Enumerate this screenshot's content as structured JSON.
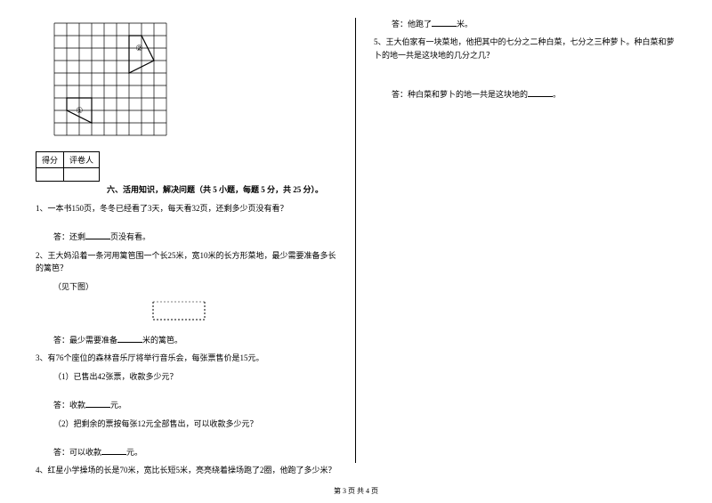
{
  "grid": {
    "rows": 9,
    "cols": 9,
    "cell_size": 14,
    "stroke": "#000000",
    "shape1": {
      "label": "①",
      "points": [
        [
          1,
          6
        ],
        [
          3,
          6
        ],
        [
          3,
          8
        ],
        [
          1,
          8
        ]
      ],
      "diag_from": [
        1,
        6
      ],
      "diag_to": [
        3,
        8
      ]
    },
    "shape2": {
      "label": "②",
      "points": [
        [
          5,
          1
        ],
        [
          7,
          1
        ],
        [
          7,
          4
        ],
        [
          5,
          4
        ]
      ],
      "inner": [
        [
          5,
          1
        ],
        [
          7,
          1
        ],
        [
          7,
          3
        ],
        [
          5,
          3
        ]
      ]
    }
  },
  "score_table": {
    "c1": "得分",
    "c2": "评卷人"
  },
  "section6": {
    "title": "六、活用知识，解决问题（共 5 小题，每题 5 分，共 25 分）。",
    "q1": "1、一本书150页，冬冬已经看了3天，每天看32页，还剩多少页没有看？",
    "a1_pre": "答：还剩",
    "a1_post": "页没有看。",
    "q2": "2、王大妈沿着一条河用篱笆围一个长25米，宽10米的长方形菜地，最少需要准备多长的篱笆？",
    "q2_sub": "（见下图）",
    "a2_pre": "答：最少需要准备",
    "a2_post": "米的篱笆。",
    "q3": "3、有76个座位的森林音乐厅将举行音乐会，每张票售价是15元。",
    "q3_1": "（1）已售出42张票，收款多少元？",
    "a3_1_pre": "答：收款",
    "a3_1_post": "元。",
    "q3_2": "（2）把剩余的票按每张12元全部售出，可以收款多少元？",
    "a3_2_pre": "答：可以收款",
    "a3_2_post": "元。",
    "q4": "4、红星小学操场的长是70米，宽比长短5米，亮亮绕着操场跑了2圈，他跑了多少米？",
    "a4_pre": "答：他跑了",
    "a4_post": "米。",
    "q5": "5、王大伯家有一块菜地，他把其中的七分之二种白菜，七分之三种萝卜。种白菜和萝卜的地一共是这块地的几分之几？",
    "a5_pre": "答：种白菜和萝卜的地一共是这块地的",
    "a5_post": "。"
  },
  "dotted_rect": {
    "width": 60,
    "height": 22,
    "dash": "2,2",
    "stroke": "#000000"
  },
  "footer": "第 3 页 共 4 页"
}
